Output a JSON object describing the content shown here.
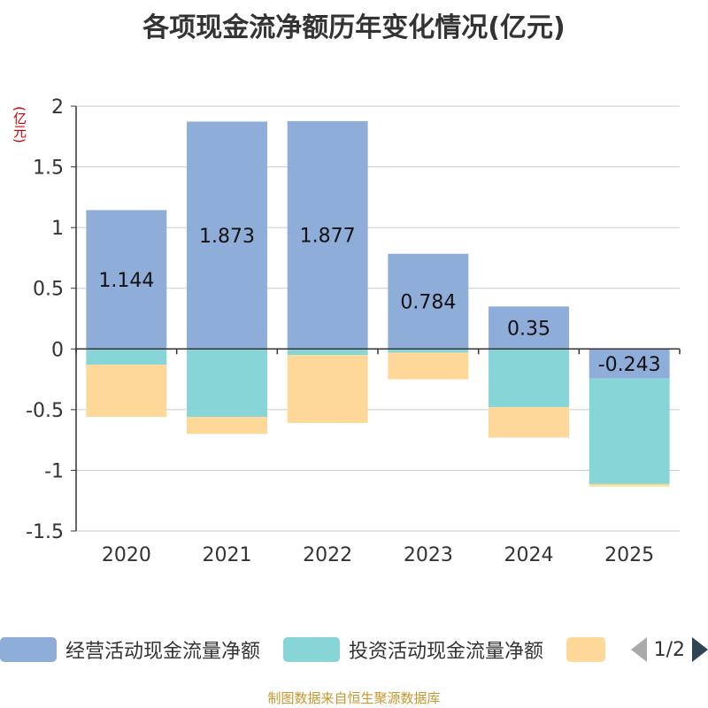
{
  "chart_data": {
    "type": "bar",
    "stacked": true,
    "title": "各项现金流净额历年变化情况(亿元)",
    "ylabel": "(亿元)",
    "categories": [
      "2020",
      "2021",
      "2022",
      "2023",
      "2024",
      "2025"
    ],
    "ylim": [
      -1.5,
      2
    ],
    "yticks": [
      2,
      1.5,
      1,
      0.5,
      0,
      -0.5,
      -1,
      -1.5
    ],
    "ytick_labels": [
      "2",
      "1.5",
      "1",
      "0.5",
      "0",
      "-0.5",
      "-1",
      "-1.5"
    ],
    "series": [
      {
        "name": "经营活动现金流量净额",
        "values": [
          1.144,
          1.873,
          1.877,
          0.784,
          0.35,
          -0.243
        ],
        "labels": [
          "1.144",
          "1.873",
          "1.877",
          "0.784",
          "0.35",
          "-0.243"
        ]
      },
      {
        "name": "投资活动现金流量净额",
        "values": [
          -0.13,
          -0.56,
          -0.05,
          -0.03,
          -0.48,
          -0.87
        ]
      },
      {
        "name": "",
        "values": [
          -0.43,
          -0.14,
          -0.56,
          -0.22,
          -0.25,
          -0.02
        ]
      }
    ],
    "colors": [
      "#8eadd9",
      "#87d5d7",
      "#fed898"
    ],
    "legend_position": "bottom"
  },
  "legend": {
    "items": [
      "经营活动现金流量净额",
      "投资活动现金流量净额",
      ""
    ],
    "page": "1/2"
  },
  "footer": "制图数据来自恒生聚源数据库"
}
